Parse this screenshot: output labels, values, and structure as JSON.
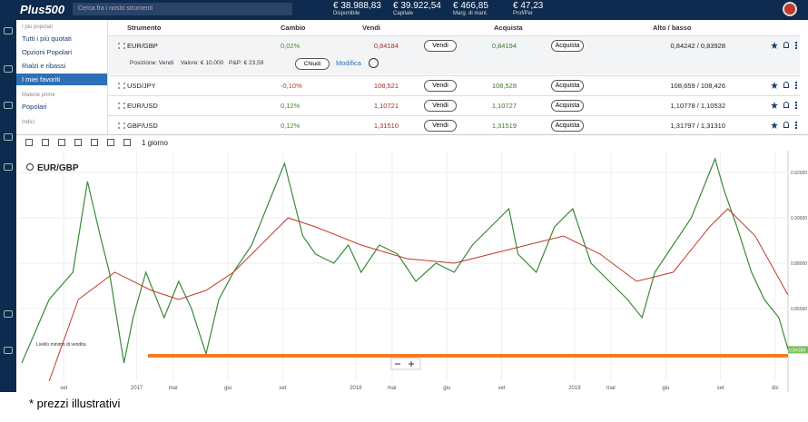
{
  "header": {
    "logo": "Plus500",
    "search_placeholder": "Cerca fra i nostri strumenti",
    "stats": [
      {
        "value": "€ 38.988,83",
        "label": "Disponibile"
      },
      {
        "value": "€ 39.922,54",
        "label": "Capitale"
      },
      {
        "value": "€ 466,85",
        "label": "Marg. di mant."
      },
      {
        "value": "€ 47,23",
        "label": "Prof/Per"
      }
    ]
  },
  "sidebar": {
    "sections": [
      {
        "title": "I più popolari",
        "items": [
          "Tutti i più quotati",
          "Opzioni Popolari",
          "Rialzi e ribassi",
          "I miei favoriti"
        ]
      },
      {
        "title": "Materie prime",
        "items": [
          "Popolari"
        ]
      },
      {
        "title": "Indici",
        "items": []
      }
    ]
  },
  "table": {
    "columns": [
      "Strumento",
      "Cambio",
      "Vendi",
      "Acquista",
      "Alto / basso"
    ],
    "buttons": {
      "sell": "Vendi",
      "buy": "Acquista"
    },
    "rows": [
      {
        "instrument": "EUR/GBP",
        "change": "0,02%",
        "sell": "0,84184",
        "buy": "0,84194",
        "high_low": "0,84242 / 0,83928"
      },
      {
        "instrument": "USD/JPY",
        "change": "-0,10%",
        "sell": "108,521",
        "buy": "108,528",
        "high_low": "108,659 / 108,426"
      },
      {
        "instrument": "EUR/USD",
        "change": "0,12%",
        "sell": "1,10721",
        "buy": "1,10727",
        "high_low": "1,10778 / 1,10532"
      },
      {
        "instrument": "GBP/USD",
        "change": "0,12%",
        "sell": "1,31510",
        "buy": "1,31519",
        "high_low": "1,31797 / 1,31310"
      }
    ],
    "position": {
      "side": "Posizione: Vendi",
      "value": "Valore: € 10.000",
      "pnl": "P&P: € 23,59",
      "close": "Chiudi",
      "edit": "Modifica"
    }
  },
  "toolbar": {
    "timeframe": "1 giorno"
  },
  "footer": "* prezzi illustrativi",
  "chart_data": {
    "type": "line",
    "title": "EUR/GBP",
    "xlim": [
      5.5,
      47.7
    ],
    "xticks": [
      {
        "value": 8,
        "label": "set"
      },
      {
        "value": 12,
        "label": "2017"
      },
      {
        "value": 14,
        "label": "mar"
      },
      {
        "value": 17,
        "label": "giu"
      },
      {
        "value": 20,
        "label": "set"
      },
      {
        "value": 24,
        "label": "2018"
      },
      {
        "value": 26,
        "label": "mar"
      },
      {
        "value": 29,
        "label": "giu"
      },
      {
        "value": 32,
        "label": "set"
      },
      {
        "value": 36,
        "label": "2019"
      },
      {
        "value": 38,
        "label": "mar"
      },
      {
        "value": 41,
        "label": "giu"
      },
      {
        "value": 44,
        "label": "set"
      },
      {
        "value": 47,
        "label": "dic"
      }
    ],
    "ylim": [
      0.828,
      0.928
    ],
    "yticks": [
      {
        "value": 0.92,
        "label": "0.92000"
      },
      {
        "value": 0.9,
        "label": "0.90000"
      },
      {
        "value": 0.88,
        "label": "0.88000"
      },
      {
        "value": 0.86,
        "label": "0.86000"
      }
    ],
    "grid": true,
    "series": [
      {
        "color": "#3a8a3a",
        "x": [
          5.7,
          7.2,
          8.5,
          9.3,
          10.0,
          10.5,
          11.3,
          11.8,
          12.5,
          13.5,
          14.3,
          15.0,
          15.8,
          16.5,
          17.3,
          18.3,
          19.3,
          20.1,
          20.6,
          21.1,
          21.8,
          22.8,
          23.6,
          24.3,
          25.3,
          26.3,
          27.3,
          28.4,
          29.4,
          30.4,
          31.4,
          32.4,
          32.9,
          33.9,
          34.9,
          35.9,
          36.9,
          37.9,
          38.9,
          39.7,
          40.4,
          41.4,
          42.4,
          43.2,
          43.7,
          44.2,
          44.9,
          45.7,
          46.4,
          47.2,
          47.7
        ],
        "values": [
          0.836,
          0.864,
          0.876,
          0.916,
          0.892,
          0.876,
          0.836,
          0.856,
          0.876,
          0.856,
          0.872,
          0.86,
          0.84,
          0.864,
          0.876,
          0.888,
          0.908,
          0.924,
          0.908,
          0.892,
          0.884,
          0.88,
          0.888,
          0.876,
          0.888,
          0.884,
          0.872,
          0.88,
          0.876,
          0.888,
          0.896,
          0.904,
          0.884,
          0.876,
          0.896,
          0.904,
          0.88,
          0.872,
          0.864,
          0.856,
          0.876,
          0.888,
          0.9,
          0.916,
          0.926,
          0.912,
          0.896,
          0.876,
          0.864,
          0.856,
          0.842
        ]
      },
      {
        "color": "#c0392b",
        "x": [
          7.2,
          8.8,
          10.8,
          12.8,
          14.3,
          15.8,
          17.3,
          18.8,
          20.3,
          21.8,
          24.3,
          26.8,
          29.4,
          31.4,
          33.4,
          35.4,
          37.4,
          39.4,
          41.4,
          43.4,
          44.4,
          45.9,
          47.7
        ],
        "values": [
          0.828,
          0.864,
          0.876,
          0.868,
          0.864,
          0.868,
          0.876,
          0.888,
          0.9,
          0.896,
          0.888,
          0.882,
          0.88,
          0.884,
          0.888,
          0.892,
          0.884,
          0.872,
          0.876,
          0.896,
          0.904,
          0.892,
          0.866
        ]
      }
    ],
    "current_price": 0.84184,
    "annotations": [
      {
        "text": "Livello minimo di vendita",
        "value": 0.8392,
        "color": "#f47b20"
      }
    ]
  }
}
